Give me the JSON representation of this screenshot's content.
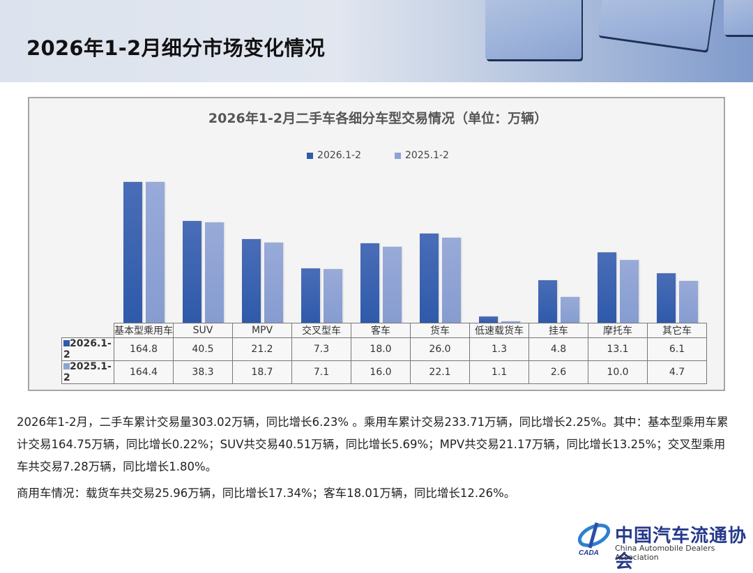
{
  "page": {
    "title": "2026年1-2月细分市场变化情况"
  },
  "chart_data": {
    "type": "bar",
    "title": "2026年1-2月二手车各细分车型交易情况（单位：万辆）",
    "xlabel": "",
    "ylabel": "",
    "unit": "万辆",
    "legend_position": "top",
    "grid": false,
    "scale_hint": "bar heights appear non-linear (approximately logarithmic)",
    "categories": [
      "基本型乘用车",
      "SUV",
      "MPV",
      "交叉型车",
      "客车",
      "货车",
      "低速载货车",
      "挂车",
      "摩托车",
      "其它车"
    ],
    "series": [
      {
        "name": "2026.1-2",
        "color": "#2e5aaa",
        "values": [
          164.8,
          40.5,
          21.2,
          7.3,
          18.0,
          26.0,
          1.3,
          4.8,
          13.1,
          6.1
        ]
      },
      {
        "name": "2025.1-2",
        "color": "#8ea2d4",
        "values": [
          164.4,
          38.3,
          18.7,
          7.1,
          16.0,
          22.1,
          1.1,
          2.6,
          10.0,
          4.7
        ]
      }
    ],
    "data_table": {
      "rows": [
        {
          "label": "2026.1-2",
          "values": [
            "164.8",
            "40.5",
            "21.2",
            "7.3",
            "18.0",
            "26.0",
            "1.3",
            "4.8",
            "13.1",
            "6.1"
          ]
        },
        {
          "label": "2025.1-2",
          "values": [
            "164.4",
            "38.3",
            "18.7",
            "7.1",
            "16.0",
            "22.1",
            "1.1",
            "2.6",
            "10.0",
            "4.7"
          ]
        }
      ]
    }
  },
  "summary": {
    "paragraph1": "2026年1-2月，二手车累计交易量303.02万辆，同比增长6.23% 。乘用车累计交易233.71万辆，同比增长2.25%。其中：基本型乘用车累计交易164.75万辆，同比增长0.22%；SUV共交易40.51万辆，同比增长5.69%；MPV共交易21.17万辆，同比增长13.25%；交叉型乘用车共交易7.28万辆，同比增长1.80%。",
    "paragraph2": "商用车情况：载货车共交易25.96万辆，同比增长17.34%；客车18.01万辆，同比增长12.26%。"
  },
  "logo": {
    "name_cn": "中国汽车流通协会",
    "name_en": "China Automobile Dealers Association",
    "abbr": "CADA"
  }
}
